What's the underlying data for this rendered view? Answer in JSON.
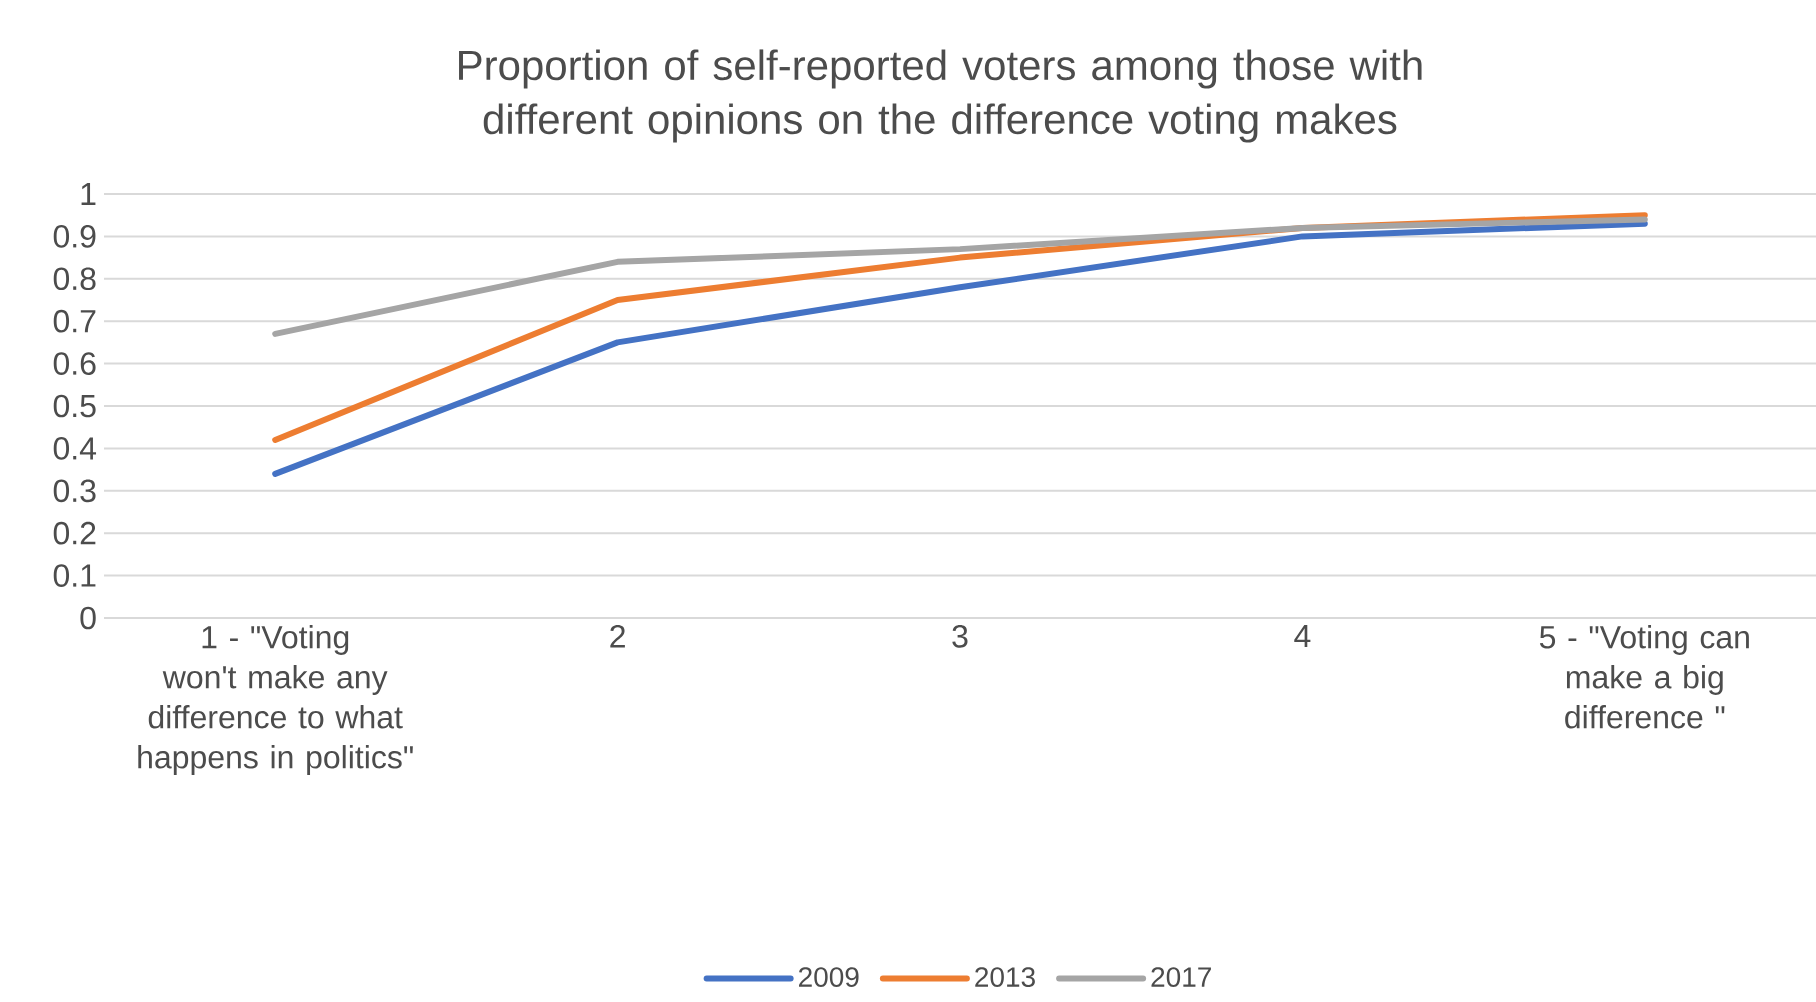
{
  "chart_data": {
    "type": "line",
    "title": "Proportion of self-reported voters among those with different opinions on the difference voting makes",
    "categories": [
      "1 - \"Voting won't make any difference to what happens in politics\"",
      "2",
      "3",
      "4",
      "5 - \"Voting can make a big difference \""
    ],
    "series": [
      {
        "name": "2009",
        "color": "#4472c4",
        "values": [
          0.34,
          0.65,
          0.78,
          0.9,
          0.93
        ]
      },
      {
        "name": "2013",
        "color": "#ed7d31",
        "values": [
          0.42,
          0.75,
          0.85,
          0.92,
          0.95
        ]
      },
      {
        "name": "2017",
        "color": "#a5a5a5",
        "values": [
          0.67,
          0.84,
          0.87,
          0.92,
          0.94
        ]
      }
    ],
    "ylim": [
      0,
      1
    ],
    "yticks": [
      0,
      0.1,
      0.2,
      0.3,
      0.4,
      0.5,
      0.6,
      0.7,
      0.8,
      0.9,
      1
    ],
    "grid": "y",
    "legend": "bottom",
    "marker": "none",
    "line_style": "solid"
  }
}
